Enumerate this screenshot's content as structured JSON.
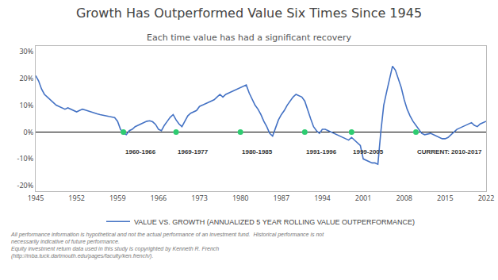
{
  "chart_data": {
    "type": "line",
    "title": "Growth Has Outperformed Value Six Times Since 1945",
    "subtitle": "Each time value has had a significant recovery",
    "disclaimer": "All performance information is hypothetical and not the actual performance of an investment fund.  Historical performance is not necessarily indicative of future performance.\nEquity investment return data used in this study is copyrighted by Kenneth R. French (http://mba.tuck.dartmouth.edu/pages/faculty/ken.french/).",
    "x": [
      1945.0,
      1945.5,
      1946.0,
      1946.5,
      1947.0,
      1947.5,
      1948.0,
      1948.5,
      1949.0,
      1949.5,
      1950.0,
      1950.5,
      1951.0,
      1951.5,
      1952.0,
      1952.5,
      1953.0,
      1953.5,
      1954.0,
      1954.5,
      1955.0,
      1955.5,
      1956.0,
      1956.5,
      1957.0,
      1957.5,
      1958.0,
      1958.5,
      1959.0,
      1959.5,
      1960.0,
      1960.5,
      1961.0,
      1961.5,
      1962.0,
      1962.5,
      1963.0,
      1963.5,
      1964.0,
      1964.5,
      1965.0,
      1965.5,
      1966.0,
      1966.5,
      1967.0,
      1967.5,
      1968.0,
      1968.5,
      1969.0,
      1969.5,
      1970.0,
      1970.5,
      1971.0,
      1971.5,
      1972.0,
      1972.5,
      1973.0,
      1973.5,
      1974.0,
      1974.5,
      1975.0,
      1975.5,
      1976.0,
      1976.5,
      1977.0,
      1977.5,
      1978.0,
      1978.5,
      1979.0,
      1979.5,
      1980.0,
      1980.5,
      1981.0,
      1981.5,
      1982.0,
      1982.5,
      1983.0,
      1983.5,
      1984.0,
      1984.5,
      1985.0,
      1985.5,
      1986.0,
      1986.5,
      1987.0,
      1987.5,
      1988.0,
      1988.5,
      1989.0,
      1989.5,
      1990.0,
      1990.5,
      1991.0,
      1991.5,
      1992.0,
      1992.5,
      1993.0,
      1993.5,
      1994.0,
      1994.5,
      1995.0,
      1995.5,
      1996.0,
      1996.5,
      1997.0,
      1997.5,
      1998.0,
      1998.5,
      1999.0,
      1999.5,
      2000.0,
      2000.5,
      2001.0,
      2001.5,
      2002.0,
      2002.5,
      2003.0,
      2003.5,
      2004.0,
      2004.5,
      2005.0,
      2005.5,
      2006.0,
      2006.5,
      2007.0,
      2007.5,
      2008.0,
      2008.5,
      2009.0,
      2009.5,
      2010.0,
      2010.5,
      2011.0,
      2011.5,
      2012.0,
      2012.5,
      2013.0,
      2013.5,
      2014.0,
      2014.5,
      2015.0,
      2015.5,
      2016.0,
      2016.5,
      2017.0,
      2017.5,
      2018.0,
      2018.5,
      2019.0,
      2019.5,
      2020.0,
      2020.5,
      2021.0,
      2021.5,
      2022.0
    ],
    "series": [
      {
        "name": "VALUE VS. GROWTH (ANNUALIZED 5 YEAR ROLLING VALUE OUTPERFORMANCE)",
        "color": "#4472C4",
        "values": [
          0.21,
          0.19,
          0.16,
          0.14,
          0.13,
          0.12,
          0.11,
          0.1,
          0.095,
          0.09,
          0.085,
          0.09,
          0.085,
          0.08,
          0.075,
          0.08,
          0.085,
          0.082,
          0.078,
          0.075,
          0.07,
          0.068,
          0.065,
          0.062,
          0.06,
          0.058,
          0.056,
          0.054,
          0.04,
          0.01,
          -0.005,
          -0.01,
          0.005,
          0.01,
          0.02,
          0.025,
          0.03,
          0.035,
          0.04,
          0.042,
          0.038,
          0.028,
          0.01,
          0.005,
          0.025,
          0.04,
          0.055,
          0.065,
          0.045,
          0.03,
          0.02,
          0.04,
          0.06,
          0.07,
          0.075,
          0.08,
          0.095,
          0.1,
          0.105,
          0.11,
          0.115,
          0.12,
          0.13,
          0.14,
          0.13,
          0.14,
          0.145,
          0.15,
          0.155,
          0.16,
          0.165,
          0.17,
          0.175,
          0.145,
          0.12,
          0.1,
          0.085,
          0.065,
          0.04,
          0.02,
          -0.005,
          -0.015,
          0.015,
          0.045,
          0.065,
          0.08,
          0.1,
          0.115,
          0.13,
          0.14,
          0.135,
          0.13,
          0.115,
          0.08,
          0.05,
          0.02,
          0.005,
          -0.005,
          0.01,
          0.01,
          0.005,
          0.0,
          -0.005,
          -0.01,
          -0.015,
          -0.02,
          -0.025,
          -0.03,
          -0.02,
          -0.03,
          -0.04,
          -0.05,
          -0.1,
          -0.105,
          -0.11,
          -0.115,
          -0.115,
          -0.12,
          0.0,
          0.1,
          0.15,
          0.2,
          0.245,
          0.23,
          0.2,
          0.165,
          0.12,
          0.085,
          0.06,
          0.04,
          0.025,
          0.01,
          -0.005,
          -0.01,
          -0.008,
          -0.005,
          -0.01,
          -0.015,
          -0.02,
          -0.025,
          -0.025,
          -0.02,
          -0.01,
          0.0,
          0.01,
          0.015,
          0.02,
          0.025,
          0.03,
          0.035,
          0.025,
          0.02,
          0.03,
          0.035,
          0.04
        ]
      }
    ],
    "dots": {
      "x": [
        1960,
        1969,
        1980,
        1991,
        1999,
        2010
      ],
      "y": [
        0.0,
        0.0,
        0.0,
        0.0,
        0.0,
        0.0
      ],
      "color": "#2ecc71",
      "marker": "circle"
    },
    "annotations": [
      {
        "text": "1960-1966",
        "x": 1960,
        "y": -0.055
      },
      {
        "text": "1969-1977",
        "x": 1969,
        "y": -0.055
      },
      {
        "text": "1980-1985",
        "x": 1980,
        "y": -0.055
      },
      {
        "text": "1991-1996",
        "x": 1991,
        "y": -0.055
      },
      {
        "text": "1999-2005",
        "x": 1999,
        "y": -0.055
      },
      {
        "text": "CURRENT: 2010-2017",
        "x": 2010,
        "y": -0.055
      }
    ],
    "xlim": [
      1945,
      2022
    ],
    "xticks": [
      1945,
      1952,
      1959,
      1966,
      1973,
      1980,
      1987,
      1994,
      2001,
      2008,
      2015,
      2022
    ],
    "ylim": [
      -0.22,
      0.32
    ],
    "yticks": [
      {
        "value": -0.2,
        "label": "-20%"
      },
      {
        "value": -0.1,
        "label": "-10%"
      },
      {
        "value": 0.0,
        "label": "0%"
      },
      {
        "value": 0.1,
        "label": "10%"
      },
      {
        "value": 0.2,
        "label": "20%"
      },
      {
        "value": 0.3,
        "label": "30%"
      }
    ],
    "grid": false,
    "legend": "bottom"
  }
}
